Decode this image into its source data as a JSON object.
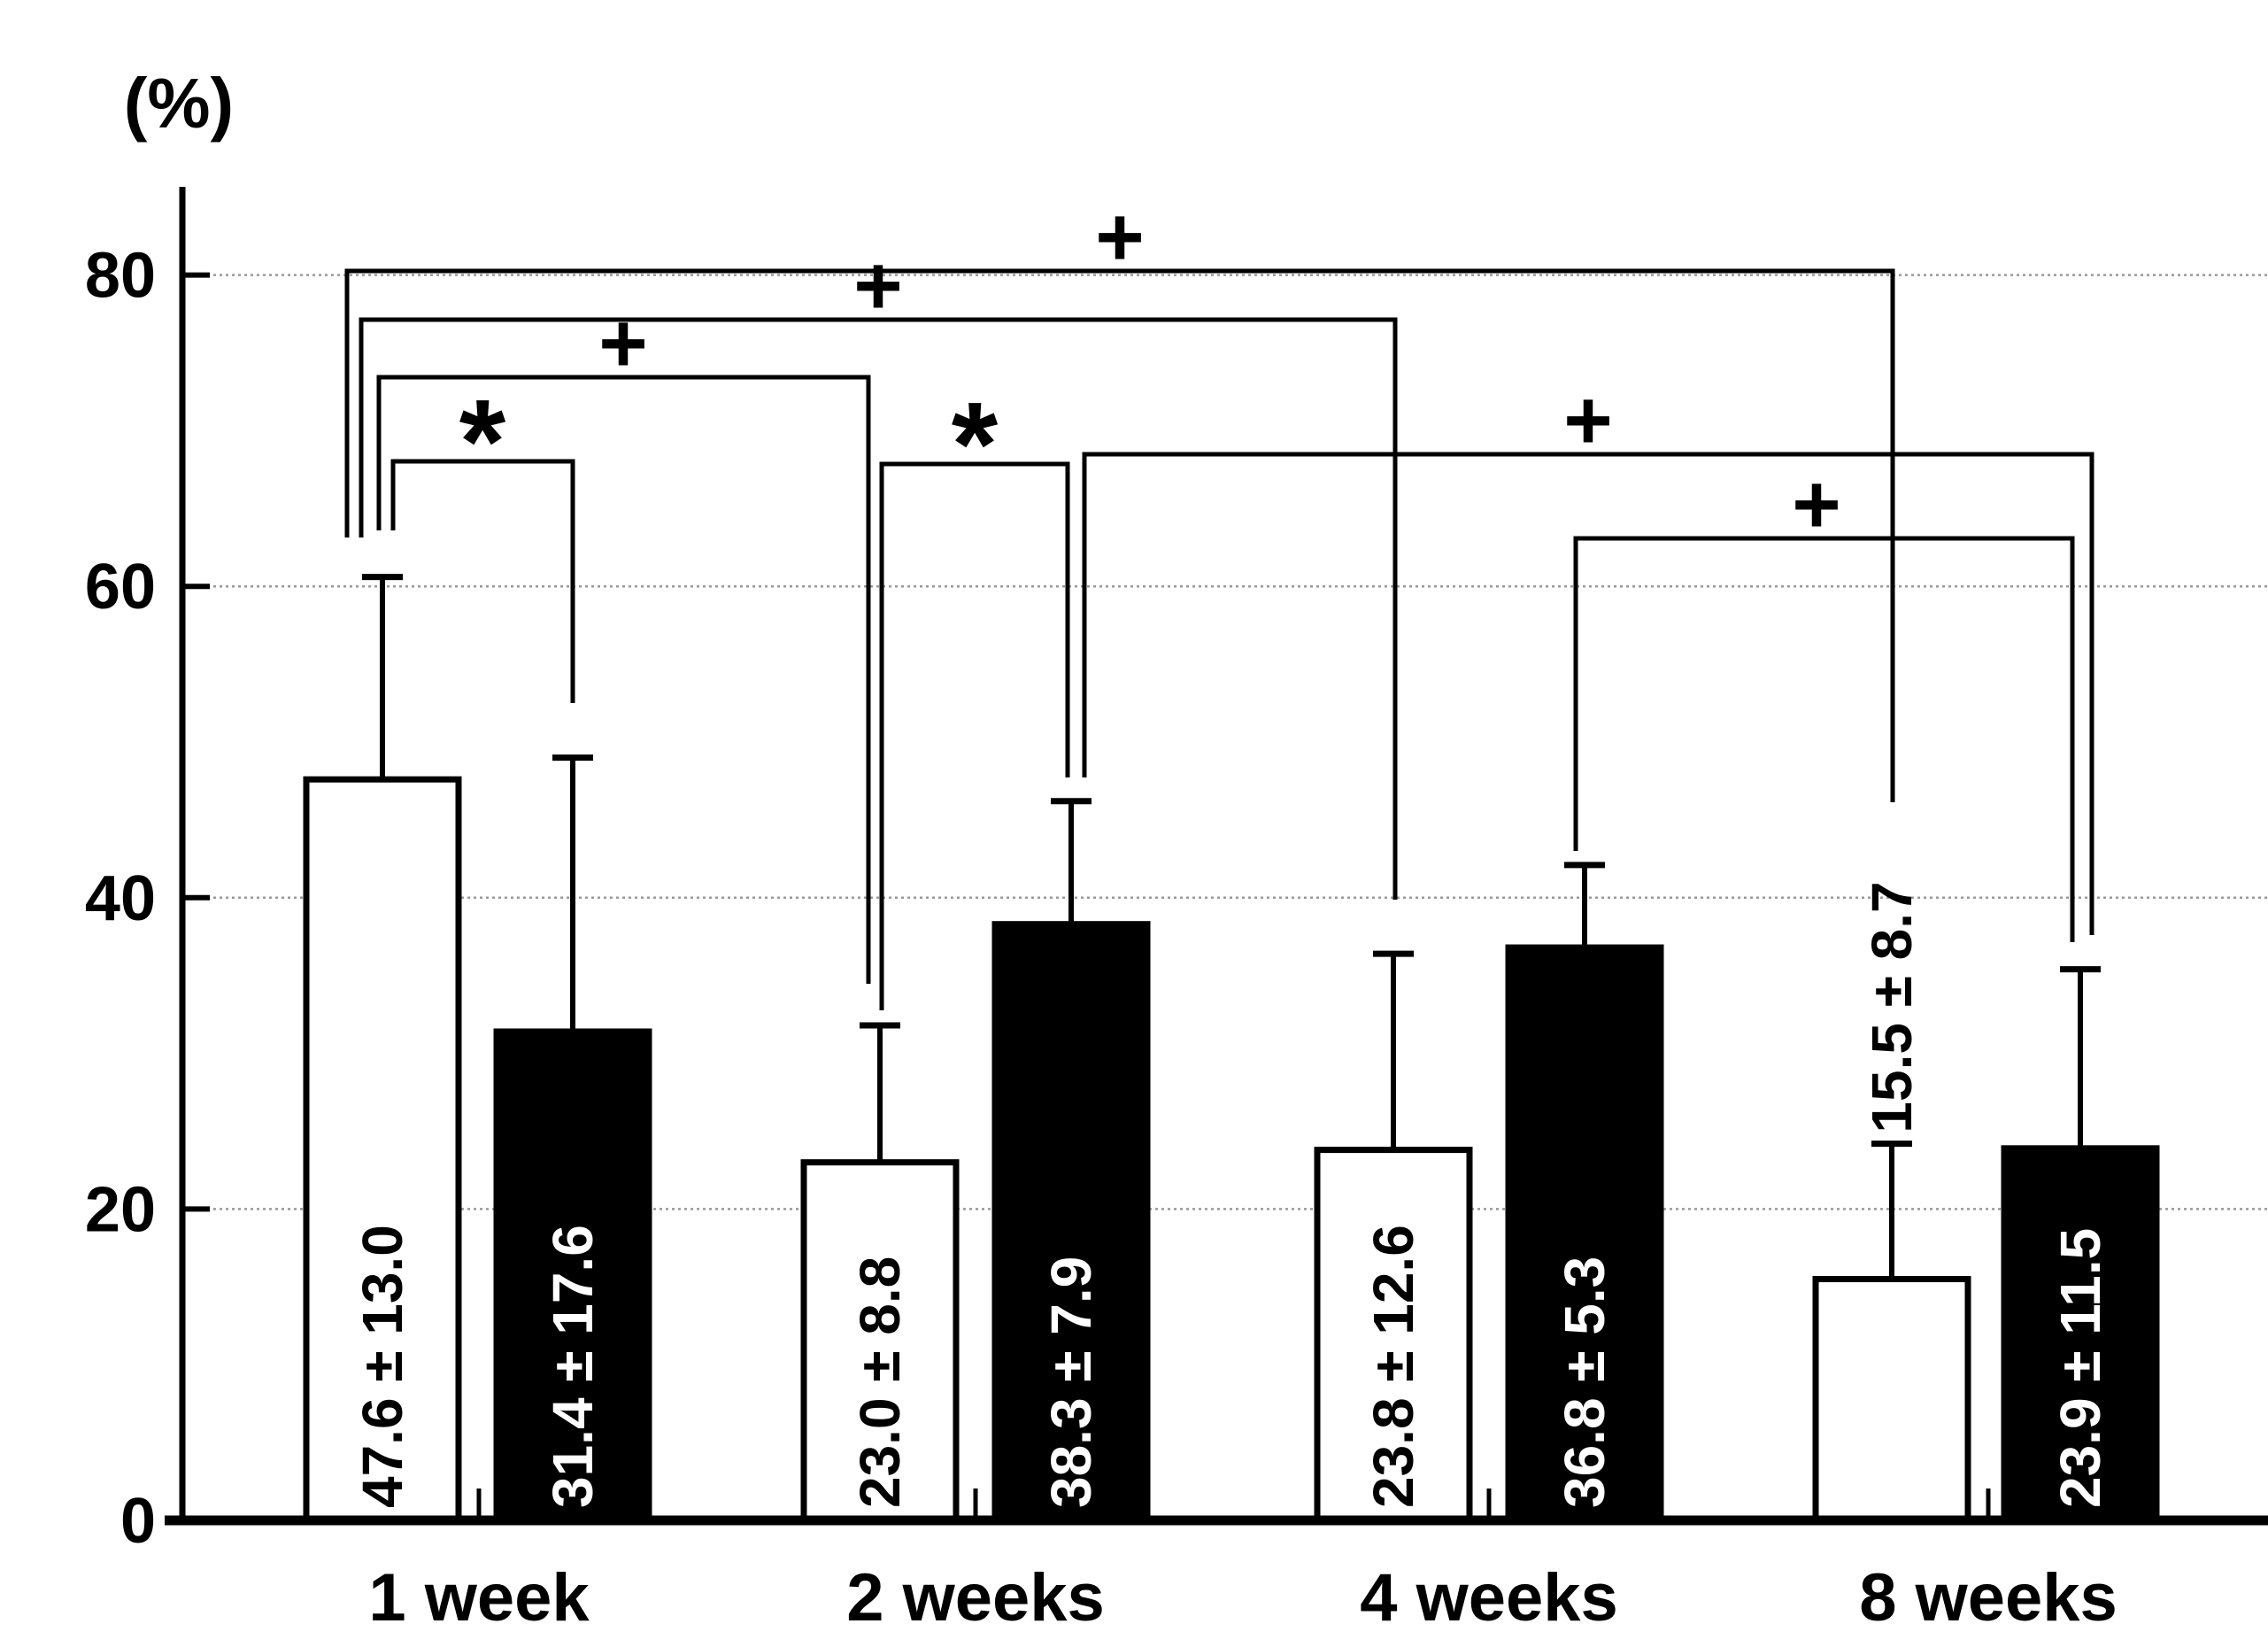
{
  "chart_data": {
    "type": "bar",
    "title": "",
    "ylabel": "(%)",
    "xlabel": "",
    "ylim": [
      0,
      85
    ],
    "yticks": [
      0,
      20,
      40,
      60,
      80
    ],
    "ytick_labels": [
      "0",
      "20",
      "40",
      "60",
      "80"
    ],
    "grid": true,
    "legend_position": "none",
    "categories": [
      "1 week",
      "2 weeks",
      "4 weeks",
      "8 weeks"
    ],
    "series": [
      {
        "key": "white_bars",
        "fill": "#ffffff",
        "label_color": "#000000",
        "values": [
          47.6,
          23.0,
          23.8,
          15.5
        ],
        "errors": [
          13.0,
          8.8,
          12.6,
          8.7
        ],
        "value_labels": [
          "47.6 ± 13.0",
          "23.0 ± 8.8",
          "23.8 ± 12.6",
          "15.5 ± 8.7"
        ]
      },
      {
        "key": "black_bars",
        "fill": "#000000",
        "label_color": "#ffffff",
        "values": [
          31.4,
          38.3,
          36.8,
          23.9
        ],
        "errors": [
          17.6,
          7.9,
          5.3,
          11.5
        ],
        "value_labels": [
          "31.4 ± 17.6",
          "38.3 ± 7.9",
          "36.8 ± 5.3",
          "23.9 ± 11.5"
        ]
      }
    ],
    "significance": [
      {
        "symbol": "+",
        "from": {
          "category": "1 week",
          "series": "white_bars"
        },
        "to": {
          "category": "8 weeks",
          "series": "white_bars"
        }
      },
      {
        "symbol": "+",
        "from": {
          "category": "1 week",
          "series": "white_bars"
        },
        "to": {
          "category": "4 weeks",
          "series": "white_bars"
        }
      },
      {
        "symbol": "+",
        "from": {
          "category": "1 week",
          "series": "white_bars"
        },
        "to": {
          "category": "2 weeks",
          "series": "white_bars"
        }
      },
      {
        "symbol": "*",
        "from": {
          "category": "1 week",
          "series": "white_bars"
        },
        "to": {
          "category": "1 week",
          "series": "black_bars"
        }
      },
      {
        "symbol": "*",
        "from": {
          "category": "2 weeks",
          "series": "white_bars"
        },
        "to": {
          "category": "2 weeks",
          "series": "black_bars"
        }
      },
      {
        "symbol": "+",
        "from": {
          "category": "2 weeks",
          "series": "black_bars"
        },
        "to": {
          "category": "8 weeks",
          "series": "black_bars"
        }
      },
      {
        "symbol": "+",
        "from": {
          "category": "4 weeks",
          "series": "black_bars"
        },
        "to": {
          "category": "8 weeks",
          "series": "black_bars"
        }
      }
    ],
    "colors": {
      "axis": "#000000",
      "gridline": "#999999",
      "bar_stroke": "#000000",
      "text": "#000000"
    }
  }
}
